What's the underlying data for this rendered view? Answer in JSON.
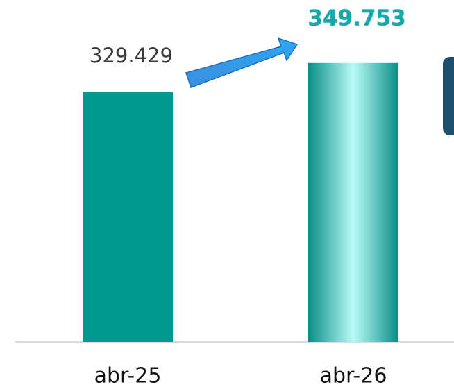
{
  "chart_data": {
    "type": "bar",
    "categories": [
      "abr-25",
      "abr-26"
    ],
    "values": [
      329429,
      349753
    ],
    "value_labels": [
      "329.429",
      "349.753"
    ],
    "colors": [
      "#00998f",
      "#17a7a8"
    ],
    "ylim": [
      155000,
      370000
    ]
  }
}
